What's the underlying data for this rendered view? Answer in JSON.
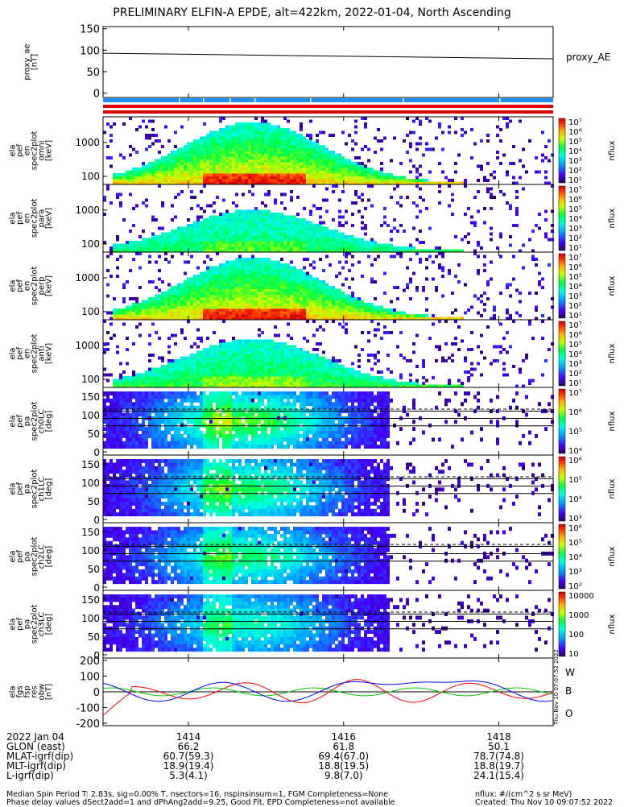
{
  "title": "PRELIMINARY ELFIN-A EPDE, alt=422km, 2022-01-04, North Ascending",
  "side_stamp": "Thu Nov 10 07:07:52 2022",
  "chart_data": [
    {
      "type": "line",
      "id": "proxy_ae",
      "ylabel": [
        "proxy_ae",
        "[nT]"
      ],
      "legend": "proxy_AE",
      "ylim": [
        -10,
        155
      ],
      "yticks": [
        0,
        50,
        100,
        150
      ],
      "series": [
        {
          "name": "proxy_AE",
          "x": [
            0,
            1
          ],
          "y": [
            93,
            80
          ]
        }
      ]
    },
    {
      "type": "heatmap",
      "id": "en_omni",
      "ylabel": [
        "ela",
        "pef",
        "en",
        "spec2plot",
        "omni",
        "[keV]"
      ],
      "yticks": [
        "1000",
        "100"
      ],
      "zlabel": "nflux",
      "colorbar_ticks": [
        "10⁷",
        "10⁶",
        "10⁵",
        "10⁴",
        "10³",
        "10²",
        "10¹"
      ]
    },
    {
      "type": "heatmap",
      "id": "en_para",
      "ylabel": [
        "ela",
        "pef",
        "en",
        "spec2plot",
        "para",
        "[keV]"
      ],
      "yticks": [
        "1000",
        "100"
      ],
      "zlabel": "nflux",
      "colorbar_ticks": [
        "10⁷",
        "10⁶",
        "10⁵",
        "10⁴",
        "10³",
        "10²",
        "10¹"
      ]
    },
    {
      "type": "heatmap",
      "id": "en_perp",
      "ylabel": [
        "ela",
        "pef",
        "en",
        "spec2plot",
        "perp",
        "[keV]"
      ],
      "yticks": [
        "1000",
        "100"
      ],
      "zlabel": "nflux",
      "colorbar_ticks": [
        "10⁷",
        "10⁶",
        "10⁵",
        "10⁴",
        "10³",
        "10²",
        "10¹"
      ]
    },
    {
      "type": "heatmap",
      "id": "en_anti",
      "ylabel": [
        "ela",
        "pef",
        "en",
        "spec2plot",
        "anti",
        "[keV]"
      ],
      "yticks": [
        "1000",
        "100"
      ],
      "zlabel": "nflux",
      "colorbar_ticks": [
        "10⁷",
        "10⁶",
        "10⁵",
        "10⁴",
        "10³",
        "10²",
        "10¹"
      ]
    },
    {
      "type": "heatmap",
      "id": "pa_ch0",
      "ylabel": [
        "ela",
        "pef",
        "pa",
        "spec2plot",
        "ch0LC",
        "[deg]"
      ],
      "yticks": [
        "150",
        "100",
        "50",
        "0"
      ],
      "zlabel": "nflux",
      "colorbar_ticks": [
        "10⁷",
        "10⁶",
        "10⁵",
        "10⁴"
      ]
    },
    {
      "type": "heatmap",
      "id": "pa_ch1",
      "ylabel": [
        "ela",
        "pef",
        "pa",
        "spec2plot",
        "ch1LC",
        "[deg]"
      ],
      "yticks": [
        "150",
        "100",
        "50",
        "0"
      ],
      "zlabel": "nflux",
      "colorbar_ticks": [
        "10⁶",
        "10⁵",
        "10⁴",
        "10³"
      ]
    },
    {
      "type": "heatmap",
      "id": "pa_ch2",
      "ylabel": [
        "ela",
        "pef",
        "pa",
        "spec2plot",
        "ch2LC",
        "[deg]"
      ],
      "yticks": [
        "150",
        "100",
        "50",
        "0"
      ],
      "zlabel": "nflux",
      "colorbar_ticks": [
        "10⁶",
        "10⁵",
        "10⁴",
        "10³",
        "10²"
      ]
    },
    {
      "type": "heatmap",
      "id": "pa_ch3",
      "ylabel": [
        "ela",
        "pef",
        "pa",
        "spec2plot",
        "ch3LC",
        "[deg]"
      ],
      "yticks": [
        "150",
        "100",
        "50",
        "0"
      ],
      "zlabel": "nflux",
      "colorbar_ticks": [
        "10000",
        "1000",
        "100",
        "10"
      ]
    },
    {
      "type": "line",
      "id": "fgs",
      "ylabel": [
        "ela",
        "fgs",
        "fsp",
        "res",
        "obw",
        "[nT]"
      ],
      "ylim": [
        -215,
        215
      ],
      "yticks": [
        200,
        100,
        0,
        -100,
        -200
      ],
      "series": [
        {
          "name": "W",
          "color": "#ff0000"
        },
        {
          "name": "B",
          "color": "#00cc00"
        },
        {
          "name": "O",
          "color": "#0000ff"
        }
      ]
    }
  ],
  "x_axis": {
    "date_label": "2022 Jan 04",
    "tick_labels": [
      "1414",
      "1416",
      "1418"
    ],
    "rows": [
      {
        "label": "GLON (east)",
        "values": [
          "66.2",
          "61.8",
          "50.1"
        ]
      },
      {
        "label": "MLAT-igrf(dip)",
        "values": [
          "60.7(59.3)",
          "69.4(67.0)",
          "78.7(74.8)"
        ]
      },
      {
        "label": "MLT-igrf(dip)",
        "values": [
          "18.9(19.4)",
          "18.8(19.5)",
          "18.8(19.7)"
        ]
      },
      {
        "label": "L-igrf(dip)",
        "values": [
          "5.3(4.1)",
          "9.8(7.0)",
          "24.1(15.4)"
        ]
      }
    ]
  },
  "footer": {
    "left1": "Median Spin Period T: 2.83s, sig=0.00% T, nsectors=16, nspinsinsum=1, FGM Completeness=None",
    "left2": "Phase delay values dSect2add=1 and dPhAng2add=9.25, Good Fit, EPD Completeness=not available",
    "right1": "nflux: #/(cm^2 s sr MeV)",
    "right2": "Created: Thu Nov 10 09:07:52 2022"
  }
}
